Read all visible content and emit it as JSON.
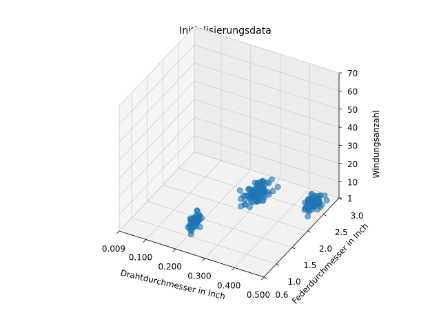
{
  "chart_data": {
    "type": "scatter3d",
    "title": "Initialisierungsdata",
    "xlabel": "Drahtdurchmesser in Inch",
    "ylabel": "Federdurchmesser in Inch",
    "zlabel": "Windungsanzahl",
    "xlim": [
      0.009,
      0.5
    ],
    "ylim": [
      0.6,
      3.0
    ],
    "zlim": [
      1,
      70
    ],
    "xticks": [
      "0.009",
      "0.100",
      "0.200",
      "0.300",
      "0.400",
      "0.500"
    ],
    "yticks": [
      "0.6",
      "1.0",
      "1.5",
      "2.0",
      "2.5",
      "3.0"
    ],
    "zticks": [
      "1",
      "10",
      "20",
      "30",
      "40",
      "50",
      "60",
      "70"
    ],
    "grid": true,
    "marker_color": "#1f77b4",
    "clusters": [
      {
        "x_center": 0.2,
        "y_center": 1.2,
        "z_center": 5,
        "x_spread": 0.02,
        "y_spread": 0.25,
        "z_spread": 6,
        "points": 70
      },
      {
        "x_center": 0.3,
        "y_center": 2.3,
        "z_center": 6,
        "x_spread": 0.05,
        "y_spread": 0.5,
        "z_spread": 4,
        "points": 90
      },
      {
        "x_center": 0.47,
        "y_center": 2.5,
        "z_center": 5,
        "x_spread": 0.04,
        "y_spread": 0.35,
        "z_spread": 4,
        "points": 60
      }
    ]
  }
}
